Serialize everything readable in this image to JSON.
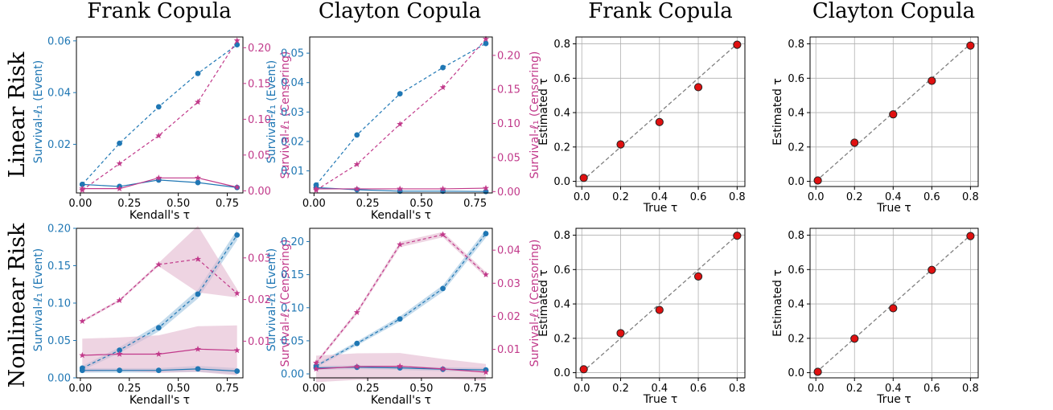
{
  "column_titles": [
    "Frank Copula",
    "Clayton Copula",
    "Frank Copula",
    "Clayton Copula"
  ],
  "row_titles": [
    "Linear Risk",
    "Nonlinear Risk"
  ],
  "colors": {
    "event": "#1f77b4",
    "censoring": "#c1398a",
    "censoring_band": "#e3b7cf",
    "event_band": "#9cc3e0",
    "scatter_fill": "#e01010",
    "scatter_edge": "#222222",
    "diagonal": "#808080",
    "grid": "#b0b0b0"
  },
  "chart_data": [
    {
      "type": "line",
      "row": 0,
      "col": 0,
      "xlabel": "Kendall's τ",
      "ylabel_left": "Survival-ℓ₁ (Event)",
      "ylabel_right": "Survival-ℓ₁ (Censoring)",
      "x": [
        0.01,
        0.2,
        0.4,
        0.6,
        0.8
      ],
      "xlim": [
        -0.02,
        0.83
      ],
      "xticks": [
        0.0,
        0.25,
        0.5,
        0.75
      ],
      "xtick_labels": [
        "0.00",
        "0.25",
        "0.50",
        "0.75"
      ],
      "ylim_left": [
        0.0012,
        0.0615
      ],
      "yticks_left": [
        0.02,
        0.04,
        0.06
      ],
      "ytick_labels_left": [
        "0.02",
        "0.04",
        "0.06"
      ],
      "ylim_right": [
        -0.003,
        0.215
      ],
      "yticks_right": [
        0.0,
        0.05,
        0.1,
        0.15,
        0.2
      ],
      "ytick_labels_right": [
        "0.00",
        "0.05",
        "0.10",
        "0.15",
        "0.20"
      ],
      "series": [
        {
          "axis": "left",
          "color": "event",
          "style": "dashed",
          "marker": "circle",
          "values": [
            0.0045,
            0.0204,
            0.0345,
            0.0474,
            0.0585
          ]
        },
        {
          "axis": "left",
          "color": "event",
          "style": "solid",
          "marker": "circle",
          "values": [
            0.0045,
            0.0037,
            0.0062,
            0.0052,
            0.0033
          ]
        },
        {
          "axis": "right",
          "color": "censoring",
          "style": "dashed",
          "marker": "star",
          "values": [
            0.001,
            0.038,
            0.077,
            0.124,
            0.21
          ]
        },
        {
          "axis": "right",
          "color": "censoring",
          "style": "solid",
          "marker": "star",
          "values": [
            0.003,
            0.003,
            0.018,
            0.018,
            0.005
          ]
        }
      ]
    },
    {
      "type": "line",
      "row": 0,
      "col": 1,
      "xlabel": "Kendall's τ",
      "ylabel_left": "Survival-ℓ₁ (Event)",
      "ylabel_right": "Survival-ℓ₁ (Censoring)",
      "x": [
        0.01,
        0.2,
        0.4,
        0.6,
        0.8
      ],
      "xlim": [
        -0.02,
        0.83
      ],
      "xticks": [
        0.0,
        0.25,
        0.5,
        0.75
      ],
      "xtick_labels": [
        "0.00",
        "0.25",
        "0.50",
        "0.75"
      ],
      "ylim_left": [
        0.0025,
        0.0555
      ],
      "yticks_left": [
        0.01,
        0.02,
        0.03,
        0.04,
        0.05
      ],
      "ytick_labels_left": [
        "0.01",
        "0.02",
        "0.03",
        "0.04",
        "0.05"
      ],
      "ylim_right": [
        -0.002,
        0.227
      ],
      "yticks_right": [
        0.0,
        0.05,
        0.1,
        0.15,
        0.2
      ],
      "ytick_labels_right": [
        "0.00",
        "0.05",
        "0.10",
        "0.15",
        "0.20"
      ],
      "series": [
        {
          "axis": "left",
          "color": "event",
          "style": "dashed",
          "marker": "circle",
          "values": [
            0.0052,
            0.0222,
            0.0362,
            0.0451,
            0.0533
          ]
        },
        {
          "axis": "left",
          "color": "event",
          "style": "solid",
          "marker": "circle",
          "values": [
            0.0043,
            0.0036,
            0.0031,
            0.0031,
            0.003
          ]
        },
        {
          "axis": "right",
          "color": "censoring",
          "style": "dashed",
          "marker": "star",
          "values": [
            0.002,
            0.04,
            0.099,
            0.153,
            0.224
          ]
        },
        {
          "axis": "right",
          "color": "censoring",
          "style": "solid",
          "marker": "star",
          "values": [
            0.004,
            0.004,
            0.004,
            0.004,
            0.005
          ]
        }
      ]
    },
    {
      "type": "scatter",
      "row": 0,
      "col": 2,
      "xlabel": "True τ",
      "ylabel": "Estimated τ",
      "x": [
        0.01,
        0.2,
        0.4,
        0.6,
        0.8
      ],
      "y": [
        0.02,
        0.215,
        0.345,
        0.548,
        0.795
      ],
      "xlim": [
        -0.03,
        0.84
      ],
      "ylim": [
        -0.03,
        0.84
      ],
      "ticks": [
        0.0,
        0.2,
        0.4,
        0.6,
        0.8
      ],
      "tick_labels": [
        "0.0",
        "0.2",
        "0.4",
        "0.6",
        "0.8"
      ]
    },
    {
      "type": "scatter",
      "row": 0,
      "col": 3,
      "xlabel": "True τ",
      "ylabel": "Estimated τ",
      "x": [
        0.01,
        0.2,
        0.4,
        0.6,
        0.8
      ],
      "y": [
        0.005,
        0.225,
        0.39,
        0.585,
        0.79
      ],
      "xlim": [
        -0.03,
        0.84
      ],
      "ylim": [
        -0.03,
        0.84
      ],
      "ticks": [
        0.0,
        0.2,
        0.4,
        0.6,
        0.8
      ],
      "tick_labels": [
        "0.0",
        "0.2",
        "0.4",
        "0.6",
        "0.8"
      ]
    },
    {
      "type": "line",
      "row": 1,
      "col": 0,
      "xlabel": "Kendall's τ",
      "ylabel_left": "Survival-ℓ₁ (Event)",
      "ylabel_right": "Survival-ℓ₁ (Censoring)",
      "x": [
        0.01,
        0.2,
        0.4,
        0.6,
        0.8
      ],
      "xlim": [
        -0.02,
        0.83
      ],
      "xticks": [
        0.0,
        0.25,
        0.5,
        0.75
      ],
      "xtick_labels": [
        "0.00",
        "0.25",
        "0.50",
        "0.75"
      ],
      "ylim_left": [
        0.0,
        0.2
      ],
      "yticks_left": [
        0.0,
        0.05,
        0.1,
        0.15,
        0.2
      ],
      "ytick_labels_left": [
        "0.00",
        "0.05",
        "0.10",
        "0.15",
        "0.20"
      ],
      "ylim_right": [
        0.0012,
        0.0371
      ],
      "yticks_right": [
        0.01,
        0.02,
        0.03
      ],
      "ytick_labels_right": [
        "0.01",
        "0.02",
        "0.03"
      ],
      "series": [
        {
          "axis": "left",
          "color": "event",
          "style": "dashed",
          "marker": "circle",
          "values": [
            0.013,
            0.037,
            0.067,
            0.112,
            0.191
          ],
          "band": [
            0.003,
            0.004,
            0.005,
            0.006,
            0.007
          ]
        },
        {
          "axis": "left",
          "color": "event",
          "style": "solid",
          "marker": "circle",
          "values": [
            0.01,
            0.01,
            0.01,
            0.012,
            0.009
          ],
          "band": [
            0.003,
            0.003,
            0.003,
            0.004,
            0.004
          ]
        },
        {
          "axis": "right",
          "color": "censoring",
          "style": "dashed",
          "marker": "star",
          "values": [
            0.0148,
            0.0198,
            0.0284,
            0.0297,
            0.0215
          ],
          "band": [
            0.0003,
            0.0003,
            0.0004,
            0.008,
            0.001
          ]
        },
        {
          "axis": "right",
          "color": "censoring",
          "style": "solid",
          "marker": "star",
          "values": [
            0.0066,
            0.0069,
            0.0069,
            0.0081,
            0.0078
          ],
          "band": [
            0.004,
            0.004,
            0.0045,
            0.0055,
            0.006
          ]
        }
      ]
    },
    {
      "type": "line",
      "row": 1,
      "col": 1,
      "xlabel": "Kendall's τ",
      "ylabel_left": "Survival-ℓ₁ (Event)",
      "ylabel_right": "Survival-ℓ₁ (Censoring)",
      "x": [
        0.01,
        0.2,
        0.4,
        0.6,
        0.8
      ],
      "xlim": [
        -0.02,
        0.83
      ],
      "xticks": [
        0.0,
        0.25,
        0.5,
        0.75
      ],
      "xtick_labels": [
        "0.00",
        "0.25",
        "0.50",
        "0.75"
      ],
      "ylim_left": [
        -0.006,
        0.22
      ],
      "yticks_left": [
        0.0,
        0.05,
        0.1,
        0.15,
        0.2
      ],
      "ytick_labels_left": [
        "0.00",
        "0.05",
        "0.10",
        "0.15",
        "0.20"
      ],
      "ylim_right": [
        0.0014,
        0.0466
      ],
      "yticks_right": [
        0.01,
        0.02,
        0.03,
        0.04
      ],
      "ytick_labels_right": [
        "0.01",
        "0.02",
        "0.03",
        "0.04"
      ],
      "series": [
        {
          "axis": "left",
          "color": "event",
          "style": "dashed",
          "marker": "circle",
          "values": [
            0.012,
            0.046,
            0.083,
            0.129,
            0.212
          ],
          "band": [
            0.003,
            0.003,
            0.004,
            0.005,
            0.006
          ]
        },
        {
          "axis": "left",
          "color": "event",
          "style": "solid",
          "marker": "circle",
          "values": [
            0.009,
            0.01,
            0.009,
            0.007,
            0.006
          ],
          "band": [
            0.003,
            0.003,
            0.003,
            0.003,
            0.003
          ]
        },
        {
          "axis": "right",
          "color": "censoring",
          "style": "dashed",
          "marker": "star",
          "values": [
            0.0059,
            0.0212,
            0.0417,
            0.0447,
            0.0326
          ],
          "band": [
            0.0005,
            0.0006,
            0.0008,
            0.0008,
            0.0008
          ]
        },
        {
          "axis": "right",
          "color": "censoring",
          "style": "solid",
          "marker": "star",
          "values": [
            0.0041,
            0.0048,
            0.0049,
            0.0041,
            0.0031
          ],
          "band": [
            0.004,
            0.004,
            0.004,
            0.003,
            0.0025
          ]
        }
      ]
    },
    {
      "type": "scatter",
      "row": 1,
      "col": 2,
      "xlabel": "True τ",
      "ylabel": "Estimated τ",
      "x": [
        0.01,
        0.2,
        0.4,
        0.6,
        0.8
      ],
      "y": [
        0.02,
        0.23,
        0.365,
        0.56,
        0.797
      ],
      "xlim": [
        -0.03,
        0.84
      ],
      "ylim": [
        -0.03,
        0.84
      ],
      "ticks": [
        0.0,
        0.2,
        0.4,
        0.6,
        0.8
      ],
      "tick_labels": [
        "0.0",
        "0.2",
        "0.4",
        "0.6",
        "0.8"
      ]
    },
    {
      "type": "scatter",
      "row": 1,
      "col": 3,
      "xlabel": "True τ",
      "ylabel": "Estimated τ",
      "x": [
        0.01,
        0.2,
        0.4,
        0.6,
        0.8
      ],
      "y": [
        0.005,
        0.198,
        0.375,
        0.598,
        0.795
      ],
      "xlim": [
        -0.03,
        0.84
      ],
      "ylim": [
        -0.03,
        0.84
      ],
      "ticks": [
        0.0,
        0.2,
        0.4,
        0.6,
        0.8
      ],
      "tick_labels": [
        "0.0",
        "0.2",
        "0.4",
        "0.6",
        "0.8"
      ]
    }
  ]
}
